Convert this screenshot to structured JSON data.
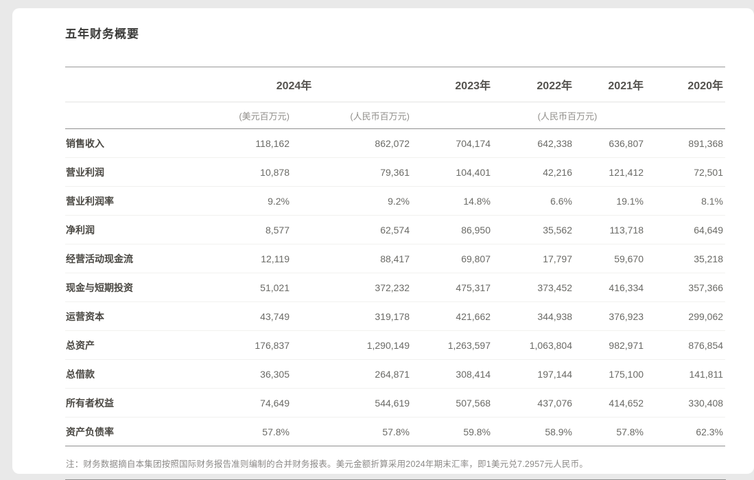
{
  "page": {
    "title": "五年财务概要",
    "note": "注：财务数据摘自本集团按照国际财务报告准则编制的合并财务报表。美元金额折算采用2024年期末汇率，即1美元兑7.2957元人民币。"
  },
  "colors": {
    "page_background": "#e9e9e9",
    "card_background": "#ffffff",
    "strong_rule": "#8f8f8f",
    "light_rule": "#e4e4e2",
    "faint_row_rule": "#f1f1ef",
    "title_text": "#3b3b39",
    "year_header_text": "#54524e",
    "unit_text": "#908e8a",
    "row_label_text": "#4a4843",
    "value_text": "#6a6a66",
    "note_text": "#8b8987"
  },
  "table": {
    "year_headers": [
      {
        "label": "2024年",
        "span": 2,
        "align": "center"
      },
      {
        "label": "2023年",
        "span": 1,
        "align": "right"
      },
      {
        "label": "2022年",
        "span": 1,
        "align": "right"
      },
      {
        "label": "2021年",
        "span": 1,
        "align": "right"
      },
      {
        "label": "2020年",
        "span": 1,
        "align": "right"
      }
    ],
    "unit_headers": [
      {
        "label": "(美元百万元)",
        "span": 1,
        "align": "right"
      },
      {
        "label": "(人民币百万元)",
        "span": 1,
        "align": "right"
      },
      {
        "label": "(人民币百万元)",
        "span": 4,
        "align": "center"
      }
    ],
    "rows": [
      {
        "label": "销售收入",
        "values": [
          "118,162",
          "862,072",
          "704,174",
          "642,338",
          "636,807",
          "891,368"
        ]
      },
      {
        "label": "营业利润",
        "values": [
          "10,878",
          "79,361",
          "104,401",
          "42,216",
          "121,412",
          "72,501"
        ]
      },
      {
        "label": "营业利润率",
        "values": [
          "9.2%",
          "9.2%",
          "14.8%",
          "6.6%",
          "19.1%",
          "8.1%"
        ]
      },
      {
        "label": "净利润",
        "values": [
          "8,577",
          "62,574",
          "86,950",
          "35,562",
          "113,718",
          "64,649"
        ]
      },
      {
        "label": "经营活动现金流",
        "values": [
          "12,119",
          "88,417",
          "69,807",
          "17,797",
          "59,670",
          "35,218"
        ]
      },
      {
        "label": "现金与短期投资",
        "values": [
          "51,021",
          "372,232",
          "475,317",
          "373,452",
          "416,334",
          "357,366"
        ]
      },
      {
        "label": "运营资本",
        "values": [
          "43,749",
          "319,178",
          "421,662",
          "344,938",
          "376,923",
          "299,062"
        ]
      },
      {
        "label": "总资产",
        "values": [
          "176,837",
          "1,290,149",
          "1,263,597",
          "1,063,804",
          "982,971",
          "876,854"
        ]
      },
      {
        "label": "总借款",
        "values": [
          "36,305",
          "264,871",
          "308,414",
          "197,144",
          "175,100",
          "141,811"
        ]
      },
      {
        "label": "所有者权益",
        "values": [
          "74,649",
          "544,619",
          "507,568",
          "437,076",
          "414,652",
          "330,408"
        ]
      },
      {
        "label": "资产负债率",
        "values": [
          "57.8%",
          "57.8%",
          "59.8%",
          "58.9%",
          "57.8%",
          "62.3%"
        ]
      }
    ]
  }
}
